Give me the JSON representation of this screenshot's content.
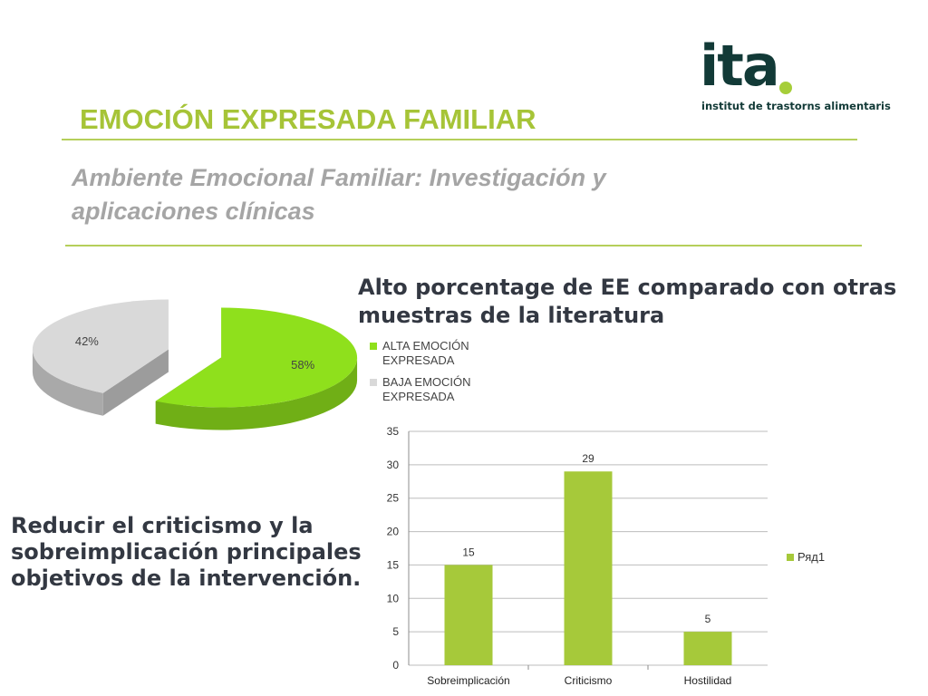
{
  "logo": {
    "text": "ita",
    "tagline": "institut de trastorns alimentaris"
  },
  "slide": {
    "title": "EMOCIÓN EXPRESADA FAMILIAR",
    "subtitle": "Ambiente Emocional Familiar: Investigación y aplicaciones clínicas",
    "heading": "Alto porcentage de EE comparado con otras muestras de la literatura",
    "note": "Reducir el criticismo y la sobreimplicación principales objetivos de la intervención."
  },
  "chart_data": [
    {
      "type": "pie",
      "categories": [
        "ALTA EMOCIÓN EXPRESADA",
        "BAJA EMOCIÓN EXPRESADA"
      ],
      "values": [
        58,
        42
      ],
      "labels": [
        "58%",
        "42%"
      ],
      "colors": [
        "#8fe01c",
        "#d9d9d9"
      ],
      "legend": "top"
    },
    {
      "type": "bar",
      "categories": [
        "Sobreimplicación",
        "Criticismo",
        "Hostilidad"
      ],
      "series": [
        {
          "name": "Ряд1",
          "values": [
            15,
            29,
            5
          ]
        }
      ],
      "ylim": [
        0,
        35
      ],
      "yticks": [
        0,
        5,
        10,
        15,
        20,
        25,
        30,
        35
      ],
      "grid": true,
      "legend": "right",
      "colors": [
        "#a6c93a"
      ]
    }
  ]
}
